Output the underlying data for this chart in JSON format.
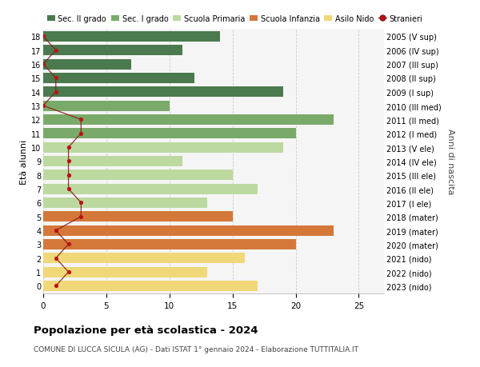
{
  "ages": [
    18,
    17,
    16,
    15,
    14,
    13,
    12,
    11,
    10,
    9,
    8,
    7,
    6,
    5,
    4,
    3,
    2,
    1,
    0
  ],
  "years": [
    "2005 (V sup)",
    "2006 (IV sup)",
    "2007 (III sup)",
    "2008 (II sup)",
    "2009 (I sup)",
    "2010 (III med)",
    "2011 (II med)",
    "2012 (I med)",
    "2013 (V ele)",
    "2014 (IV ele)",
    "2015 (III ele)",
    "2016 (II ele)",
    "2017 (I ele)",
    "2018 (mater)",
    "2019 (mater)",
    "2020 (mater)",
    "2021 (nido)",
    "2022 (nido)",
    "2023 (nido)"
  ],
  "values": [
    14,
    11,
    7,
    12,
    19,
    10,
    23,
    20,
    19,
    11,
    15,
    17,
    13,
    15,
    23,
    20,
    16,
    13,
    17
  ],
  "stranieri": [
    0,
    1,
    0,
    1,
    1,
    0,
    3,
    3,
    2,
    2,
    2,
    2,
    3,
    3,
    1,
    2,
    1,
    2,
    1
  ],
  "colors": {
    "sec2": "#4a7a4e",
    "sec1": "#7aaa6a",
    "primaria": "#bcd9a0",
    "infanzia": "#d4783a",
    "nido": "#f0d878",
    "stranieri_line": "#8b1a1a",
    "stranieri_dot": "#bb1111"
  },
  "category_colors": [
    "#4a7a4e",
    "#4a7a4e",
    "#4a7a4e",
    "#4a7a4e",
    "#4a7a4e",
    "#7aaa6a",
    "#7aaa6a",
    "#7aaa6a",
    "#bcd9a0",
    "#bcd9a0",
    "#bcd9a0",
    "#bcd9a0",
    "#bcd9a0",
    "#d4783a",
    "#d4783a",
    "#d4783a",
    "#f0d878",
    "#f0d878",
    "#f0d878"
  ],
  "title": "Popolazione per età scolastica - 2024",
  "subtitle": "COMUNE DI LUCCA SICULA (AG) - Dati ISTAT 1° gennaio 2024 - Elaborazione TUTTITALIA.IT",
  "ylabel": "Età alunni",
  "y2label": "Anni di nascita",
  "xlim": [
    0,
    27
  ],
  "legend_labels": [
    "Sec. II grado",
    "Sec. I grado",
    "Scuola Primaria",
    "Scuola Infanzia",
    "Asilo Nido",
    "Stranieri"
  ],
  "bg_color": "#f5f5f5",
  "bar_bg_color": "#ffffff"
}
